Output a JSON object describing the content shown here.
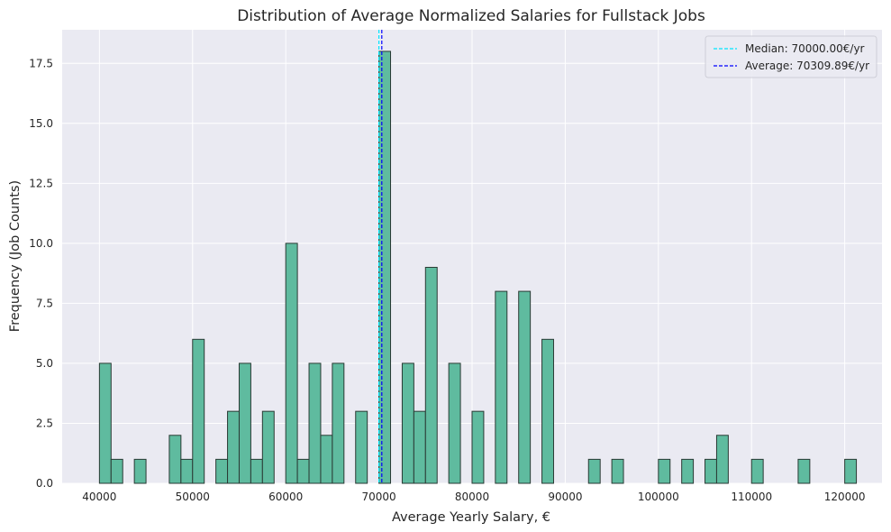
{
  "chart_data": {
    "type": "bar",
    "title": "Distribution of Average Normalized Salaries for Fullstack Jobs",
    "xlabel": "Average Yearly Salary, €",
    "ylabel": "Frequency (Job Counts)",
    "xlim": [
      36000,
      124000
    ],
    "ylim": [
      0,
      18.9
    ],
    "xticks": [
      "40000",
      "50000",
      "60000",
      "70000",
      "80000",
      "90000",
      "100000",
      "110000",
      "120000"
    ],
    "yticks": [
      "0.0",
      "2.5",
      "5.0",
      "7.5",
      "10.0",
      "12.5",
      "15.0",
      "17.5"
    ],
    "bin_width": 1250,
    "bins": [
      {
        "x": 40000,
        "count": 5
      },
      {
        "x": 41250,
        "count": 1
      },
      {
        "x": 43750,
        "count": 1
      },
      {
        "x": 47500,
        "count": 2
      },
      {
        "x": 48750,
        "count": 1
      },
      {
        "x": 50000,
        "count": 6
      },
      {
        "x": 52500,
        "count": 1
      },
      {
        "x": 53750,
        "count": 3
      },
      {
        "x": 55000,
        "count": 5
      },
      {
        "x": 56250,
        "count": 1
      },
      {
        "x": 57500,
        "count": 3
      },
      {
        "x": 60000,
        "count": 10
      },
      {
        "x": 61250,
        "count": 1
      },
      {
        "x": 62500,
        "count": 5
      },
      {
        "x": 63750,
        "count": 2
      },
      {
        "x": 65000,
        "count": 5
      },
      {
        "x": 67500,
        "count": 3
      },
      {
        "x": 70000,
        "count": 18
      },
      {
        "x": 72500,
        "count": 5
      },
      {
        "x": 73750,
        "count": 3
      },
      {
        "x": 75000,
        "count": 9
      },
      {
        "x": 77500,
        "count": 5
      },
      {
        "x": 80000,
        "count": 3
      },
      {
        "x": 82500,
        "count": 8
      },
      {
        "x": 85000,
        "count": 8
      },
      {
        "x": 87500,
        "count": 6
      },
      {
        "x": 92500,
        "count": 1
      },
      {
        "x": 95000,
        "count": 1
      },
      {
        "x": 100000,
        "count": 1
      },
      {
        "x": 102500,
        "count": 1
      },
      {
        "x": 105000,
        "count": 1
      },
      {
        "x": 106250,
        "count": 2
      },
      {
        "x": 110000,
        "count": 1
      },
      {
        "x": 115000,
        "count": 1
      },
      {
        "x": 120000,
        "count": 1
      }
    ],
    "reference_lines": [
      {
        "value": 70000,
        "label": "Median: 70000.00€/yr",
        "color": "#00e5ff"
      },
      {
        "value": 70309.89,
        "label": "Average: 70309.89€/yr",
        "color": "#0000ff"
      }
    ],
    "bar_color": "#5fbb9f",
    "bar_edge_color": "#2a3a34",
    "background_color": "#eaeaf2",
    "grid": true,
    "legend_position": "top-right"
  }
}
